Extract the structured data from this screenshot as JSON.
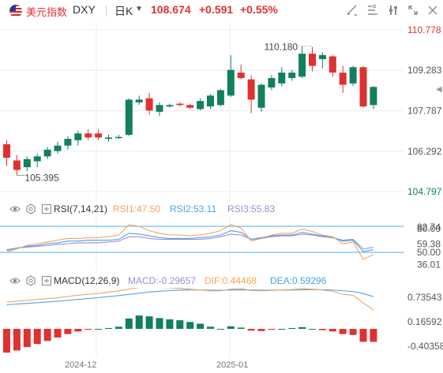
{
  "header": {
    "instrument_name": "美元指数",
    "code": "DXY",
    "period": "日K",
    "price": "108.674",
    "change": "+0.591",
    "change_pct": "+0.55%",
    "tools": [
      "drawing-tool-icon",
      "indicator-icon",
      "settings-icon",
      "fullscreen-icon",
      "close-icon"
    ],
    "accent_red": "#e03131",
    "accent_green": "#12805c"
  },
  "price_axis": {
    "ticks": [
      "110.778",
      "109.283",
      "107.787",
      "106.292",
      "104.797"
    ],
    "max_label": "110.180",
    "min_label": "105.395"
  },
  "rsi": {
    "title": "RSI(7,14,21)",
    "rsi1": "RSI1:47.50",
    "rsi2": "RSI2:53.11",
    "rsi3": "RSI3:55.83",
    "ticks": [
      "80.00",
      "82.74",
      "59.38",
      "50.00",
      "36.01"
    ],
    "colors": {
      "rsi1": "#f5a35c",
      "rsi2": "#4aa3e8",
      "rsi3": "#9c8cd6"
    }
  },
  "macd": {
    "title": "MACD(12,26,9)",
    "macd": "MACD:-0.29657",
    "dif": "DIF:0.44468",
    "dea": "DEA:0.59296",
    "ticks": [
      "0.73543",
      "0.16592",
      "-0.40358"
    ]
  },
  "time_axis": {
    "labels": [
      "2024-12",
      "2025-01"
    ]
  },
  "chart_data": {
    "type": "candlestick",
    "candles": [
      {
        "o": 106.55,
        "h": 106.7,
        "l": 105.75,
        "c": 106.05
      },
      {
        "o": 105.95,
        "h": 106.15,
        "l": 105.4,
        "c": 105.6
      },
      {
        "o": 105.7,
        "h": 106.1,
        "l": 105.55,
        "c": 106.0
      },
      {
        "o": 105.92,
        "h": 106.2,
        "l": 105.7,
        "c": 106.1
      },
      {
        "o": 106.1,
        "h": 106.45,
        "l": 106.0,
        "c": 106.35
      },
      {
        "o": 106.3,
        "h": 106.65,
        "l": 106.2,
        "c": 106.5
      },
      {
        "o": 106.5,
        "h": 106.85,
        "l": 106.35,
        "c": 106.75
      },
      {
        "o": 106.7,
        "h": 107.05,
        "l": 106.5,
        "c": 106.95
      },
      {
        "o": 106.95,
        "h": 107.1,
        "l": 106.7,
        "c": 106.8
      },
      {
        "o": 106.95,
        "h": 107.1,
        "l": 106.7,
        "c": 106.8
      },
      {
        "o": 106.75,
        "h": 106.9,
        "l": 106.65,
        "c": 106.8
      },
      {
        "o": 106.8,
        "h": 106.9,
        "l": 106.75,
        "c": 106.82
      },
      {
        "o": 106.9,
        "h": 108.25,
        "l": 106.85,
        "c": 108.2
      },
      {
        "o": 108.1,
        "h": 108.35,
        "l": 108.0,
        "c": 108.2
      },
      {
        "o": 108.25,
        "h": 108.45,
        "l": 107.65,
        "c": 107.8
      },
      {
        "o": 107.75,
        "h": 108.1,
        "l": 107.6,
        "c": 108.0
      },
      {
        "o": 107.95,
        "h": 108.05,
        "l": 107.9,
        "c": 108.0
      },
      {
        "o": 108.05,
        "h": 108.1,
        "l": 107.95,
        "c": 108.0
      },
      {
        "o": 108.0,
        "h": 108.05,
        "l": 107.85,
        "c": 107.9
      },
      {
        "o": 107.85,
        "h": 108.25,
        "l": 107.8,
        "c": 108.15
      },
      {
        "o": 107.95,
        "h": 108.4,
        "l": 107.85,
        "c": 108.35
      },
      {
        "o": 108.0,
        "h": 108.6,
        "l": 107.95,
        "c": 108.55
      },
      {
        "o": 108.35,
        "h": 109.85,
        "l": 108.3,
        "c": 109.3
      },
      {
        "o": 109.2,
        "h": 109.5,
        "l": 108.95,
        "c": 109.0
      },
      {
        "o": 108.95,
        "h": 109.1,
        "l": 107.7,
        "c": 108.2
      },
      {
        "o": 107.9,
        "h": 108.8,
        "l": 107.75,
        "c": 108.75
      },
      {
        "o": 108.65,
        "h": 109.1,
        "l": 108.55,
        "c": 109.0
      },
      {
        "o": 108.8,
        "h": 109.4,
        "l": 108.7,
        "c": 109.2
      },
      {
        "o": 109.0,
        "h": 109.3,
        "l": 108.9,
        "c": 109.2
      },
      {
        "o": 109.05,
        "h": 110.18,
        "l": 109.0,
        "c": 109.9
      },
      {
        "o": 109.9,
        "h": 110.15,
        "l": 109.25,
        "c": 109.45
      },
      {
        "o": 109.7,
        "h": 109.95,
        "l": 109.35,
        "c": 109.85
      },
      {
        "o": 109.8,
        "h": 109.85,
        "l": 109.05,
        "c": 109.2
      },
      {
        "o": 109.2,
        "h": 109.45,
        "l": 108.45,
        "c": 108.75
      },
      {
        "o": 108.8,
        "h": 109.45,
        "l": 108.7,
        "c": 109.4
      },
      {
        "o": 109.4,
        "h": 109.45,
        "l": 107.9,
        "c": 107.95
      },
      {
        "o": 108.0,
        "h": 108.7,
        "l": 107.85,
        "c": 108.67
      }
    ],
    "rsi_series": {
      "rsi1": [
        50,
        54,
        58,
        60,
        62,
        64,
        66,
        66,
        67,
        67,
        68,
        70,
        82,
        80,
        75,
        72,
        70,
        70,
        69,
        70,
        72,
        75,
        82,
        78,
        63,
        66,
        70,
        72,
        72,
        77,
        74,
        70,
        68,
        60,
        62,
        42,
        47.5
      ],
      "rsi2": [
        52,
        55,
        57,
        58,
        60,
        61,
        63,
        63,
        64,
        64,
        64,
        65,
        72,
        71,
        69,
        67,
        66,
        66,
        66,
        67,
        68,
        70,
        75,
        73,
        65,
        67,
        69,
        70,
        70,
        73,
        71,
        69,
        67,
        63,
        64,
        51,
        53.1
      ],
      "rsi3": [
        53,
        55,
        56,
        57,
        58,
        59,
        60,
        61,
        61,
        61,
        62,
        63,
        68,
        68,
        66,
        65,
        65,
        65,
        65,
        65,
        66,
        68,
        71,
        70,
        65,
        66,
        68,
        69,
        69,
        71,
        70,
        68,
        67,
        64,
        65,
        54,
        55.8
      ]
    },
    "macd_series": {
      "hist": [
        -0.55,
        -0.5,
        -0.42,
        -0.35,
        -0.28,
        -0.2,
        -0.12,
        -0.06,
        -0.02,
        0.0,
        0.02,
        0.05,
        0.24,
        0.31,
        0.29,
        0.25,
        0.22,
        0.2,
        0.16,
        0.12,
        0.05,
        0.0,
        0.06,
        0.03,
        -0.04,
        -0.05,
        -0.02,
        0.0,
        0.02,
        0.04,
        0.0,
        -0.03,
        -0.06,
        -0.12,
        -0.14,
        -0.3,
        -0.3
      ],
      "dif": [
        0.62,
        0.64,
        0.66,
        0.68,
        0.7,
        0.72,
        0.75,
        0.78,
        0.8,
        0.82,
        0.85,
        0.88,
        0.92,
        0.96,
        0.97,
        0.96,
        0.95,
        0.94,
        0.92,
        0.9,
        0.88,
        0.88,
        0.92,
        0.93,
        0.89,
        0.88,
        0.89,
        0.9,
        0.91,
        0.93,
        0.92,
        0.9,
        0.87,
        0.8,
        0.78,
        0.6,
        0.44
      ]
    }
  }
}
